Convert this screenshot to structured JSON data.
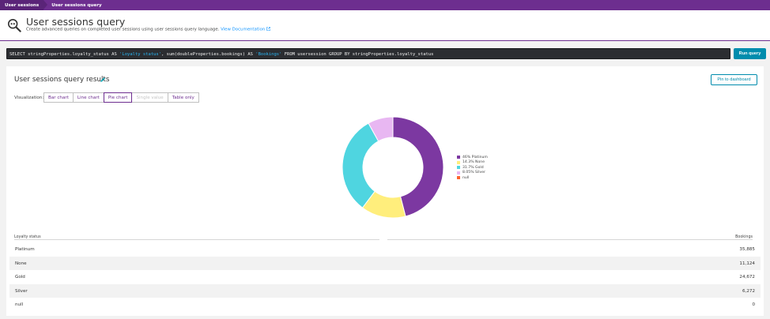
{
  "breadcrumbs": [
    "User sessions",
    "User sessions query"
  ],
  "header": {
    "title": "User sessions query",
    "subtitle": "Create advanced queries on completed user sessions using user sessions query language.",
    "doc_link": "View Documentation",
    "icon": "query-magnifier-icon"
  },
  "query": {
    "part1": "SELECT stringProperties.loyalty_status AS ",
    "str1": "'Loyalty status'",
    "part2": ", sum(doubleProperties.bookings) AS ",
    "str2": "'Bookings'",
    "part3": " FROM usersession GROUP BY stringProperties.loyalty_status",
    "run_label": "Run query"
  },
  "results": {
    "title": "User sessions query results",
    "pin_label": "Pin to dashboard",
    "viz_label": "Visualization:",
    "viz_options": [
      "Bar chart",
      "Line chart",
      "Pie chart",
      "Single value",
      "Table only"
    ],
    "viz_selected": "Pie chart"
  },
  "colors": {
    "brand": "#6d2e8f",
    "accent": "#008cad",
    "link": "#1496ff"
  },
  "chart_data": {
    "type": "pie",
    "donut": true,
    "slices": [
      {
        "label": "46% Platinum",
        "value": 46,
        "color": "#7c38a1"
      },
      {
        "label": "14.3% None",
        "value": 14.3,
        "color": "#ffee7c"
      },
      {
        "label": "31.7% Gold",
        "value": 31.7,
        "color": "#4fd5e0"
      },
      {
        "label": "8.05% Silver",
        "value": 8.05,
        "color": "#e8b7f2"
      },
      {
        "label": "null",
        "value": 0,
        "color": "#ff632e"
      }
    ],
    "legend_position": "right"
  },
  "table": {
    "columns": [
      "Loyalty status",
      "Bookings"
    ],
    "rows": [
      {
        "name": "Platinum",
        "value": "35,885"
      },
      {
        "name": "None",
        "value": "11,124"
      },
      {
        "name": "Gold",
        "value": "24,672"
      },
      {
        "name": "Silver",
        "value": "6,272"
      },
      {
        "name": "null",
        "value": "0"
      }
    ]
  }
}
